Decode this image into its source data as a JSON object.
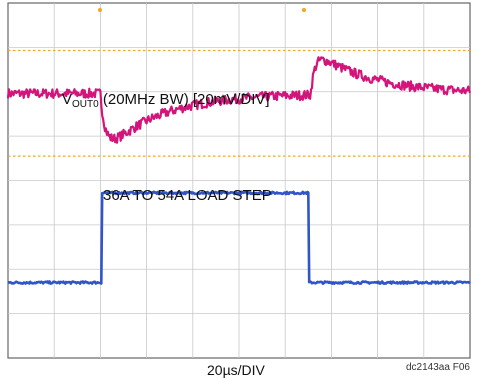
{
  "chart_data": {
    "type": "line",
    "title": "",
    "xlabel": "20µs/DIV",
    "ylabel": "",
    "grid": true,
    "divisions": {
      "x": 10,
      "y": 8
    },
    "x_range_div": [
      0,
      10
    ],
    "series": [
      {
        "name": "VOUT0 (20MHz BW) [20mV/DIV]",
        "name_main": "V",
        "name_sub": "OUT0",
        "name_rest": " (20MHz BW) [20mV/DIV]",
        "color": "#d3147a",
        "units": "div",
        "baseline_div": 5.96,
        "step_down_at_div": 2.0,
        "undershoot_div": 1.42,
        "step_up_at_div": 6.55,
        "overshoot_div": 1.05,
        "recovery_tau_div": 1.2
      },
      {
        "name": "36A TO 54A LOAD STEP",
        "color": "#2f55c8",
        "units": "div",
        "low_level_div": 1.7,
        "high_level_div": 3.72,
        "rise_at_div": 2.03,
        "fall_at_div": 6.5
      }
    ],
    "reference_lines": [
      {
        "level_div": 6.93,
        "color": "#f5a623",
        "style": "dashed"
      },
      {
        "level_div": 4.55,
        "color": "#f5a623",
        "style": "dashed"
      }
    ],
    "figure_id": "dc2143aa F06"
  }
}
